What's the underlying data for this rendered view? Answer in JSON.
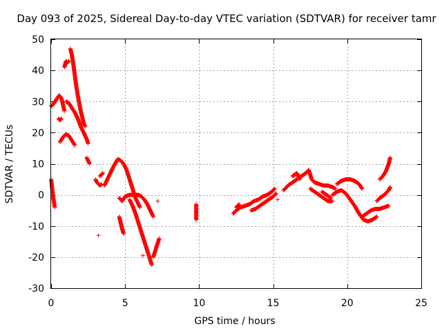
{
  "chart_data": {
    "type": "scatter",
    "title": "Day 093 of 2025, Sidereal Day-to-day VTEC variation (SDTVAR) for receiver tamr",
    "xlabel": "GPS time / hours",
    "ylabel": "SDTVAR / TECUs",
    "xlim": [
      0,
      25
    ],
    "ylim": [
      -30,
      50
    ],
    "xticks": [
      0,
      5,
      10,
      15,
      20,
      25
    ],
    "yticks": [
      -30,
      -20,
      -10,
      0,
      10,
      20,
      30,
      40,
      50
    ],
    "grid": true,
    "marker": "+",
    "color": "#ff0000",
    "series": [
      {
        "name": "tamr",
        "segments": [
          [
            [
              0.0,
              5
            ],
            [
              0.05,
              3
            ],
            [
              0.1,
              1
            ],
            [
              0.15,
              -1
            ],
            [
              0.2,
              -2.5
            ],
            [
              0.25,
              -4
            ]
          ],
          [
            [
              0.0,
              28.5
            ],
            [
              0.2,
              29.5
            ],
            [
              0.4,
              31
            ],
            [
              0.55,
              32
            ],
            [
              0.7,
              31
            ],
            [
              0.8,
              29
            ],
            [
              0.9,
              27
            ]
          ],
          [
            [
              0.5,
              24.5
            ],
            [
              0.6,
              24
            ],
            [
              0.7,
              24.5
            ]
          ],
          [
            [
              0.6,
              17
            ],
            [
              0.8,
              18.5
            ],
            [
              1.0,
              19.5
            ],
            [
              1.2,
              19
            ],
            [
              1.4,
              17.5
            ],
            [
              1.6,
              16
            ]
          ],
          [
            [
              1.0,
              30
            ],
            [
              1.2,
              29.5
            ],
            [
              1.4,
              28
            ],
            [
              1.6,
              26.5
            ],
            [
              1.8,
              24.5
            ],
            [
              2.0,
              22
            ],
            [
              2.2,
              20
            ],
            [
              2.4,
              18
            ],
            [
              2.5,
              16.5
            ]
          ],
          [
            [
              0.9,
              41
            ],
            [
              1.0,
              43
            ],
            [
              1.1,
              42.5
            ],
            [
              1.2,
              43
            ]
          ],
          [
            [
              1.3,
              47
            ],
            [
              1.4,
              45
            ],
            [
              1.5,
              42
            ],
            [
              1.6,
              38.5
            ],
            [
              1.7,
              35
            ],
            [
              1.8,
              32
            ],
            [
              1.9,
              29.5
            ],
            [
              2.0,
              27
            ],
            [
              2.1,
              25
            ],
            [
              2.2,
              23
            ],
            [
              2.3,
              22
            ]
          ],
          [
            [
              2.4,
              12
            ],
            [
              2.5,
              11
            ],
            [
              2.6,
              10
            ]
          ],
          [
            [
              3.0,
              5
            ],
            [
              3.1,
              4
            ],
            [
              3.2,
              3.5
            ],
            [
              3.3,
              3
            ],
            [
              3.4,
              3.5
            ]
          ],
          [
            [
              3.3,
              6
            ],
            [
              3.5,
              7
            ]
          ],
          [
            [
              3.2,
              -13
            ]
          ],
          [
            [
              3.6,
              3
            ],
            [
              3.9,
              6
            ],
            [
              4.2,
              9
            ],
            [
              4.5,
              11.5
            ],
            [
              4.7,
              11
            ],
            [
              4.9,
              10
            ],
            [
              5.1,
              8
            ],
            [
              5.3,
              5
            ],
            [
              5.5,
              2
            ],
            [
              5.7,
              -1
            ],
            [
              5.9,
              -3
            ],
            [
              6.0,
              -4
            ]
          ],
          [
            [
              4.6,
              -7
            ],
            [
              4.7,
              -9
            ],
            [
              4.8,
              -11
            ],
            [
              4.9,
              -12.5
            ]
          ],
          [
            [
              4.6,
              -1
            ],
            [
              4.8,
              -2
            ],
            [
              5.0,
              -0.5
            ],
            [
              5.3,
              0
            ],
            [
              5.6,
              0
            ],
            [
              5.9,
              0
            ],
            [
              6.1,
              -0.5
            ],
            [
              6.3,
              -1.5
            ],
            [
              6.5,
              -3
            ],
            [
              6.7,
              -5
            ],
            [
              6.9,
              -7
            ]
          ],
          [
            [
              5.3,
              -1.5
            ],
            [
              5.5,
              -3.5
            ],
            [
              5.7,
              -6
            ],
            [
              5.9,
              -9
            ],
            [
              6.1,
              -12
            ],
            [
              6.3,
              -15
            ],
            [
              6.5,
              -18
            ],
            [
              6.7,
              -21
            ],
            [
              6.8,
              -22.5
            ]
          ],
          [
            [
              6.9,
              -20
            ],
            [
              7.0,
              -18.5
            ],
            [
              7.1,
              -17
            ],
            [
              7.2,
              -15.5
            ],
            [
              7.3,
              -14
            ]
          ],
          [
            [
              6.2,
              -19.5
            ]
          ],
          [
            [
              7.2,
              -2
            ]
          ],
          [
            [
              9.8,
              -3
            ],
            [
              9.8,
              -7
            ],
            [
              9.8,
              -8
            ]
          ],
          [
            [
              12.3,
              -6
            ],
            [
              12.5,
              -5
            ],
            [
              12.8,
              -4
            ],
            [
              13.1,
              -3.5
            ],
            [
              13.4,
              -3
            ],
            [
              13.7,
              -2
            ],
            [
              14.0,
              -1.5
            ],
            [
              14.3,
              -0.5
            ],
            [
              14.6,
              0
            ],
            [
              14.9,
              1
            ],
            [
              15.1,
              2
            ]
          ],
          [
            [
              12.5,
              -4
            ],
            [
              12.7,
              -3
            ]
          ],
          [
            [
              13.5,
              -5
            ],
            [
              13.8,
              -4.5
            ],
            [
              14.1,
              -3.5
            ],
            [
              14.4,
              -2.5
            ],
            [
              14.7,
              -1.5
            ],
            [
              15.0,
              -0.5
            ],
            [
              15.2,
              0.5
            ]
          ],
          [
            [
              15.3,
              -1.5
            ]
          ],
          [
            [
              15.7,
              1.5
            ],
            [
              16.0,
              3
            ],
            [
              16.3,
              4
            ],
            [
              16.6,
              5
            ],
            [
              16.9,
              6
            ],
            [
              17.2,
              7
            ],
            [
              17.4,
              8
            ],
            [
              17.6,
              5
            ],
            [
              17.8,
              4
            ],
            [
              18.1,
              3.5
            ],
            [
              18.4,
              3
            ],
            [
              18.7,
              3
            ],
            [
              19.0,
              2.5
            ],
            [
              19.2,
              2
            ]
          ],
          [
            [
              16.3,
              6
            ],
            [
              16.6,
              7
            ],
            [
              16.8,
              5
            ]
          ],
          [
            [
              17.5,
              2
            ],
            [
              17.8,
              1
            ],
            [
              18.1,
              0
            ],
            [
              18.4,
              -1
            ],
            [
              18.7,
              -2
            ],
            [
              19.0,
              -2
            ]
          ],
          [
            [
              18.3,
              1
            ],
            [
              18.6,
              0
            ],
            [
              18.9,
              -1
            ]
          ],
          [
            [
              19.0,
              0
            ],
            [
              19.3,
              1
            ],
            [
              19.6,
              1.5
            ],
            [
              19.9,
              0.5
            ],
            [
              20.2,
              -1.5
            ],
            [
              20.5,
              -3.5
            ],
            [
              20.8,
              -6
            ],
            [
              21.1,
              -8
            ],
            [
              21.4,
              -8.5
            ],
            [
              21.7,
              -8
            ],
            [
              22.0,
              -7
            ]
          ],
          [
            [
              19.3,
              3.5
            ],
            [
              19.6,
              4.5
            ],
            [
              19.9,
              5
            ],
            [
              20.2,
              5
            ],
            [
              20.5,
              4.5
            ],
            [
              20.8,
              3.5
            ],
            [
              21.0,
              2
            ]
          ],
          [
            [
              21.0,
              -7
            ],
            [
              21.3,
              -6
            ],
            [
              21.6,
              -5
            ],
            [
              21.9,
              -4.5
            ],
            [
              22.2,
              -4.5
            ],
            [
              22.5,
              -4
            ],
            [
              22.8,
              -3.5
            ]
          ],
          [
            [
              22.0,
              -2
            ],
            [
              22.2,
              -1
            ],
            [
              22.5,
              0
            ],
            [
              22.8,
              1.5
            ],
            [
              22.9,
              2.5
            ]
          ],
          [
            [
              22.2,
              5
            ],
            [
              22.4,
              6
            ],
            [
              22.6,
              7.5
            ],
            [
              22.8,
              10
            ],
            [
              22.9,
              12
            ]
          ]
        ]
      }
    ]
  }
}
